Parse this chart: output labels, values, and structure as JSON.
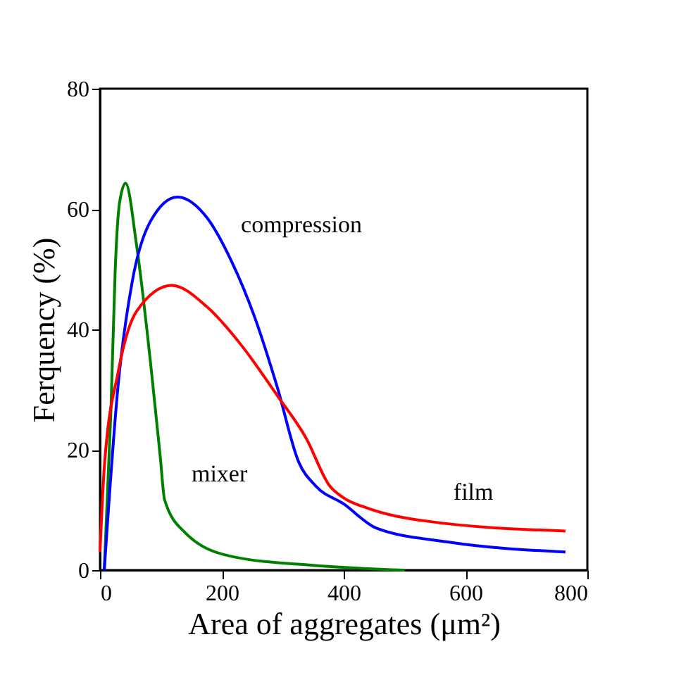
{
  "chart_data": {
    "type": "line",
    "xlabel": "Area of aggregates (μm²)",
    "ylabel": "Ferquency (%)",
    "xlim": [
      0,
      800
    ],
    "xticks": [
      0,
      200,
      400,
      600,
      800
    ],
    "ylim": [
      0,
      80
    ],
    "yticks": [
      0,
      20,
      40,
      60,
      80
    ],
    "grid": false,
    "marker": "none",
    "line_style": "solid",
    "series": [
      {
        "name": "mixer",
        "color": "#008000",
        "x": [
          7,
          18,
          25,
          32,
          42,
          60,
          83,
          99,
          106,
          139,
          215,
          350,
          500
        ],
        "values": [
          0,
          26.7,
          50,
          61,
          64.3,
          54,
          34.4,
          18.7,
          11.7,
          6.3,
          2.3,
          0.8,
          0
        ]
      },
      {
        "name": "compression",
        "color": "#0000ff",
        "x": [
          7,
          30,
          53,
          83,
          127,
          176,
          215,
          254,
          291,
          326,
          354,
          400,
          453,
          569,
          764
        ],
        "values": [
          0,
          31,
          48,
          58,
          62,
          58.5,
          51.5,
          42,
          30.4,
          18,
          14,
          11,
          7,
          4.7,
          3
        ]
      },
      {
        "name": "film",
        "color": "#ff0000",
        "x": [
          0,
          7,
          30,
          60,
          118,
          176,
          231,
          291,
          338,
          377,
          400,
          439,
          532,
          764
        ],
        "values": [
          3,
          17,
          33,
          43,
          47.3,
          43.7,
          37.5,
          29,
          22,
          14,
          12,
          10.3,
          8.2,
          6.5
        ]
      }
    ]
  }
}
